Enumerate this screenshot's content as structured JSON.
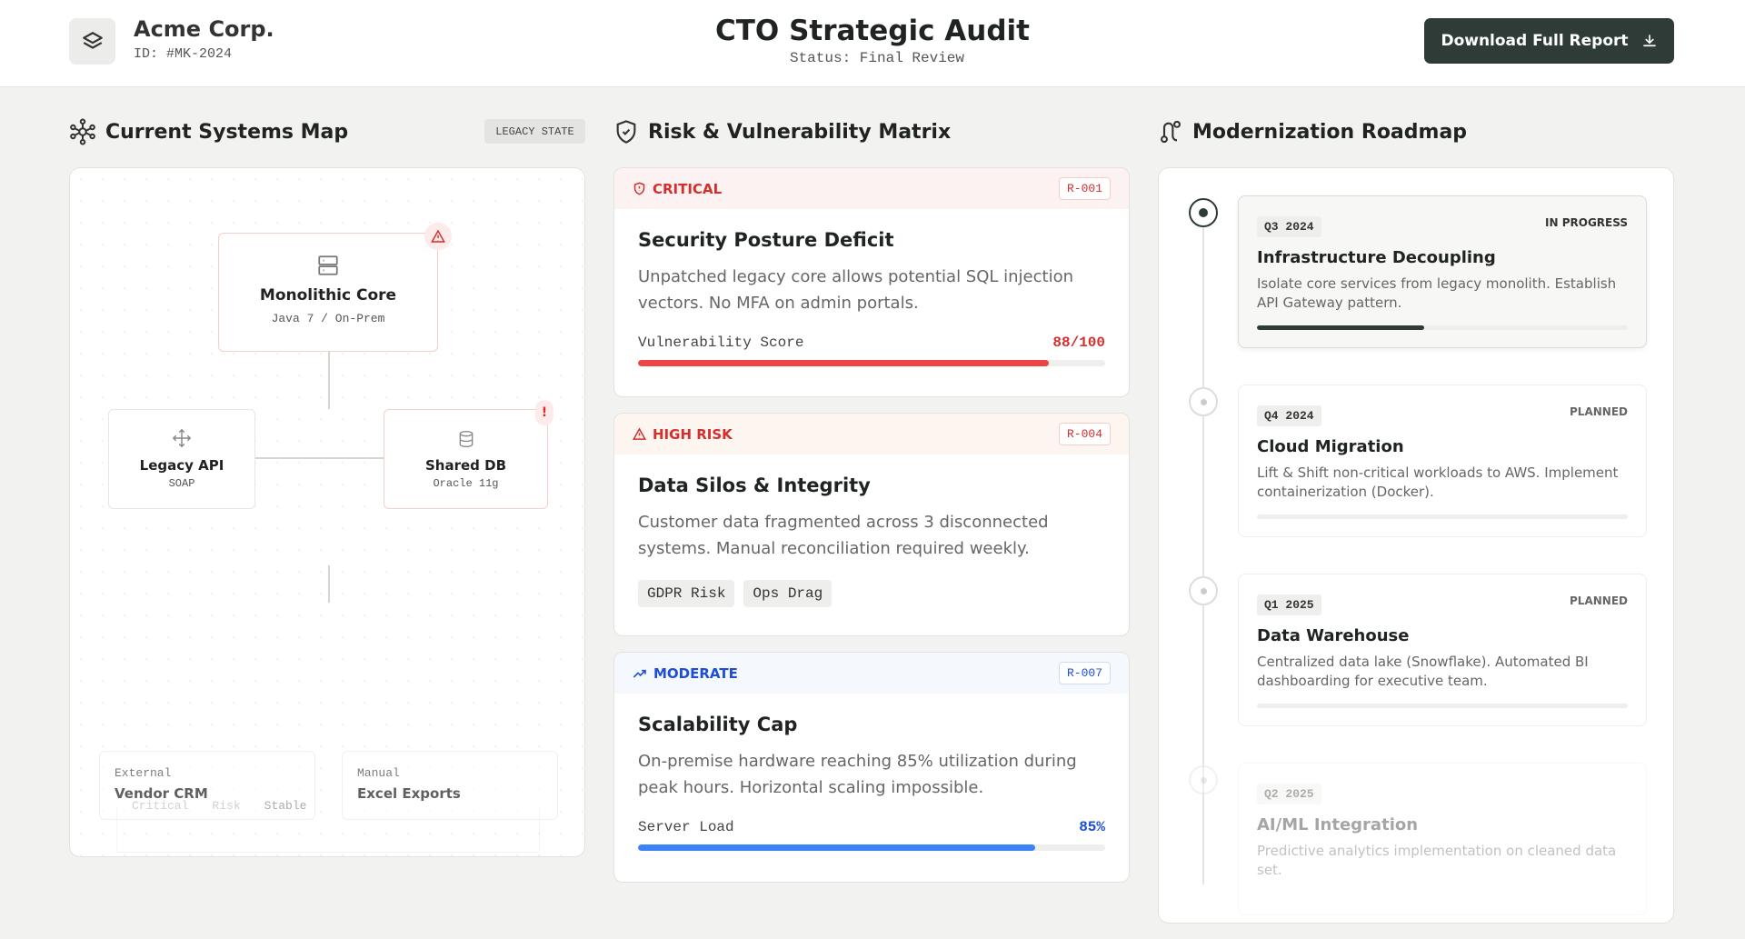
{
  "header": {
    "company": "Acme Corp.",
    "id": "ID: #MK-2024",
    "title": "CTO Strategic Audit",
    "status": "Status: Final Review",
    "button": "Download Full Report"
  },
  "systems_map": {
    "title": "Current Systems Map",
    "badge": "LEGACY STATE",
    "nodes": [
      {
        "label": "Monolithic Core",
        "sub": "Java 7 / On-Prem"
      },
      {
        "label": "Legacy API",
        "sub": "SOAP"
      },
      {
        "label": "Shared DB",
        "sub": "Oracle 11g",
        "flag": "!"
      }
    ],
    "externals": [
      {
        "kind": "External",
        "label": "Vendor CRM"
      },
      {
        "kind": "Manual",
        "label": "Excel Exports"
      }
    ],
    "legend": [
      "Critical",
      "Risk",
      "Stable"
    ]
  },
  "risk_matrix": {
    "title": "Risk & Vulnerability Matrix",
    "cards": [
      {
        "level": "CRITICAL",
        "id": "R-001",
        "title": "Security Posture Deficit",
        "description": "Unpatched legacy core allows potential SQL injection vectors. No MFA on admin portals.",
        "metric": {
          "label": "Vulnerability Score",
          "value": 88,
          "max": 100,
          "value_label": "88/100"
        }
      },
      {
        "level": "HIGH RISK",
        "id": "R-004",
        "title": "Data Silos & Integrity",
        "description": "Customer data fragmented across 3 disconnected systems. Manual reconciliation required weekly.",
        "tags": [
          "GDPR Risk",
          "Ops Drag"
        ]
      },
      {
        "level": "MODERATE",
        "id": "R-007",
        "title": "Scalability Cap",
        "description": "On-premise hardware reaching 85% utilization during peak hours. Horizontal scaling impossible.",
        "metric": {
          "label": "Server Load",
          "value": 85,
          "value_label": "85%"
        }
      }
    ]
  },
  "roadmap": {
    "title": "Modernization Roadmap",
    "items": [
      {
        "quarter": "Q3 2024",
        "status": "IN PROGRESS",
        "title": "Infrastructure Decoupling",
        "description": "Isolate core services from legacy monolith. Establish API Gateway pattern.",
        "progress": 45
      },
      {
        "quarter": "Q4 2024",
        "status": "PLANNED",
        "title": "Cloud Migration",
        "description": "Lift & Shift non-critical workloads to AWS. Implement containerization (Docker).",
        "progress": 0
      },
      {
        "quarter": "Q1 2025",
        "status": "PLANNED",
        "title": "Data Warehouse",
        "description": "Centralized data lake (Snowflake). Automated BI dashboarding for executive team.",
        "progress": 0
      },
      {
        "quarter": "Q2 2025",
        "title": "AI/ML Integration",
        "description": "Predictive analytics implementation on cleaned data set."
      }
    ]
  }
}
